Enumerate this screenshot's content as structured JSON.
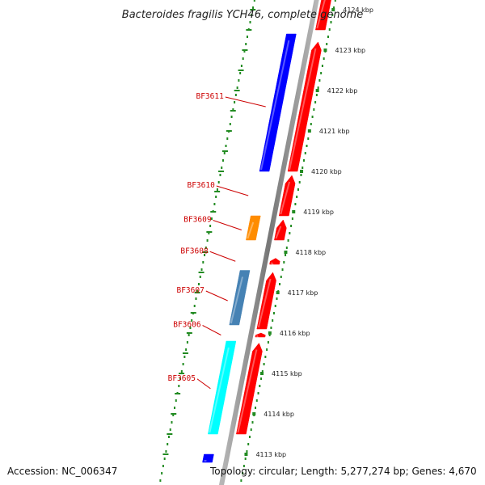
{
  "title": "Bacteroides fragilis YCH46, complete genome",
  "footer": {
    "accession": "Accession: NC_006347",
    "topology": "Topology: circular; Length: 5,277,274 bp; Genes: 4,670"
  },
  "colors": {
    "forward_gene": "#ff0000",
    "reverse_gene": "#0000ff",
    "scale_ticks": "#228b22",
    "label_text": "#cc0000",
    "backbone": "#888888"
  },
  "scale": {
    "unit": "kbp",
    "ticks": [
      {
        "kbp": 4113,
        "label": "4113 kbp"
      },
      {
        "kbp": 4114,
        "label": "4114 kbp"
      },
      {
        "kbp": 4115,
        "label": "4115 kbp"
      },
      {
        "kbp": 4116,
        "label": "4116 kbp"
      },
      {
        "kbp": 4117,
        "label": "4117 kbp"
      },
      {
        "kbp": 4118,
        "label": "4118 kbp"
      },
      {
        "kbp": 4119,
        "label": "4119 kbp"
      },
      {
        "kbp": 4120,
        "label": "4120 kbp"
      },
      {
        "kbp": 4121,
        "label": "4121 kbp"
      },
      {
        "kbp": 4122,
        "label": "4122 kbp"
      },
      {
        "kbp": 4123,
        "label": "4123 kbp"
      },
      {
        "kbp": 4124,
        "label": "4124 kbp"
      }
    ]
  },
  "genes": [
    {
      "label": "BF3611",
      "strand": "forward",
      "start_kbp": 4120.0,
      "end_kbp": 4123.2,
      "color": "#ff0000"
    },
    {
      "label": "",
      "strand": "reverse",
      "start_kbp": 4120.0,
      "end_kbp": 4123.4,
      "color": "#0000ff"
    },
    {
      "label": "BF3610",
      "strand": "forward",
      "start_kbp": 4118.9,
      "end_kbp": 4119.9,
      "color": "#ff0000"
    },
    {
      "label": "BF3609",
      "strand": "forward",
      "start_kbp": 4118.3,
      "end_kbp": 4118.8,
      "color": "#ff0000"
    },
    {
      "label": "",
      "strand": "reverse",
      "start_kbp": 4118.3,
      "end_kbp": 4118.9,
      "color": "#ff8c00"
    },
    {
      "label": "BF3608",
      "strand": "forward",
      "start_kbp": 4117.7,
      "end_kbp": 4117.85,
      "color": "#ff0000"
    },
    {
      "label": "BF3607",
      "strand": "forward",
      "start_kbp": 4116.1,
      "end_kbp": 4117.5,
      "color": "#ff0000"
    },
    {
      "label": "",
      "strand": "reverse",
      "start_kbp": 4116.2,
      "end_kbp": 4117.55,
      "color": "#4682b4"
    },
    {
      "label": "BF3606",
      "strand": "forward",
      "start_kbp": 4115.9,
      "end_kbp": 4116.0,
      "color": "#ff0000"
    },
    {
      "label": "BF3605",
      "strand": "forward",
      "start_kbp": 4113.5,
      "end_kbp": 4115.75,
      "color": "#ff0000"
    },
    {
      "label": "",
      "strand": "reverse",
      "start_kbp": 4113.5,
      "end_kbp": 4115.8,
      "color": "#00ffff"
    },
    {
      "label": "",
      "strand": "reverse",
      "start_kbp": 4112.8,
      "end_kbp": 4113.0,
      "color": "#0000ff"
    },
    {
      "label": "",
      "strand": "forward",
      "start_kbp": 4123.5,
      "end_kbp": 4124.5,
      "color": "#ff0000"
    }
  ]
}
